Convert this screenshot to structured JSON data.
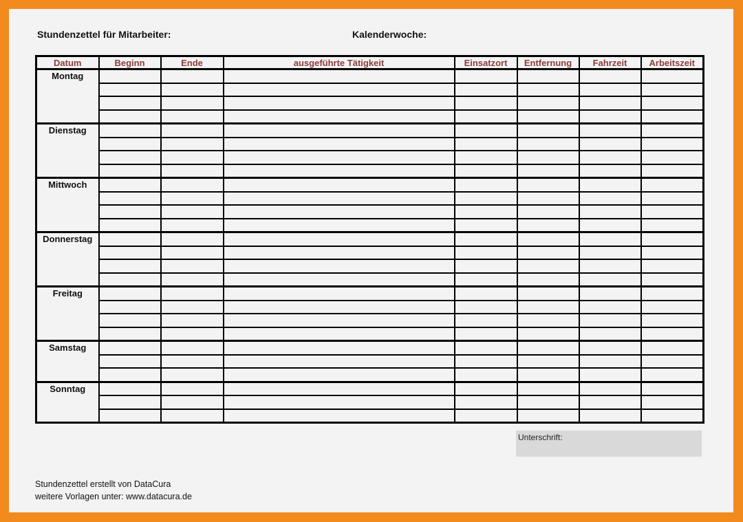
{
  "header": {
    "title": "Stundenzettel für Mitarbeiter:",
    "week_label": "Kalenderwoche:"
  },
  "table": {
    "columns": [
      "Datum",
      "Beginn",
      "Ende",
      "ausgeführte Tätigkeit",
      "Einsatzort",
      "Entfernung",
      "Fahrzeit",
      "Arbeitszeit"
    ],
    "days": [
      {
        "name": "Montag",
        "rows": 4
      },
      {
        "name": "Dienstag",
        "rows": 4
      },
      {
        "name": "Mittwoch",
        "rows": 4
      },
      {
        "name": "Donnerstag",
        "rows": 4
      },
      {
        "name": "Freitag",
        "rows": 4
      },
      {
        "name": "Samstag",
        "rows": 3
      },
      {
        "name": "Sonntag",
        "rows": 3
      }
    ]
  },
  "signature": {
    "label": "Unterschrift:"
  },
  "footer": {
    "line1": "Stundenzettel erstellt von DataCura",
    "line2": "weitere Vorlagen unter: www.datacura.de"
  },
  "colors": {
    "border": "#f28a1e",
    "header_text": "#8b3b3b",
    "signature_box": "#d9d9d9"
  }
}
